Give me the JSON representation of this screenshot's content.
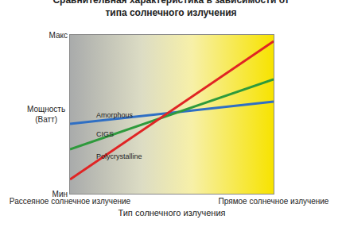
{
  "chart_data": {
    "type": "line",
    "title": "Сравнительная характеристика в зависимости от\nтипа солнечного излучения",
    "x_label": "Тип солнечного излучения",
    "y_label": "Мощность\n(Ватт)",
    "categories": [
      "Рассеяное солнечное излучение",
      "Прямое солнечное излучение"
    ],
    "series": [
      {
        "name": "Amorphous",
        "color": "#2f6fc4",
        "values": [
          44,
          58
        ]
      },
      {
        "name": "CIGS",
        "color": "#2e9a3c",
        "values": [
          28,
          72
        ]
      },
      {
        "name": "Polycrystalline",
        "color": "#e02424",
        "values": [
          9,
          96
        ]
      }
    ],
    "ylim": [
      0,
      100
    ],
    "yticks": [
      {
        "value": 0,
        "label": "Мин"
      },
      {
        "value": 100,
        "label": "Макс"
      }
    ],
    "grid": false
  }
}
